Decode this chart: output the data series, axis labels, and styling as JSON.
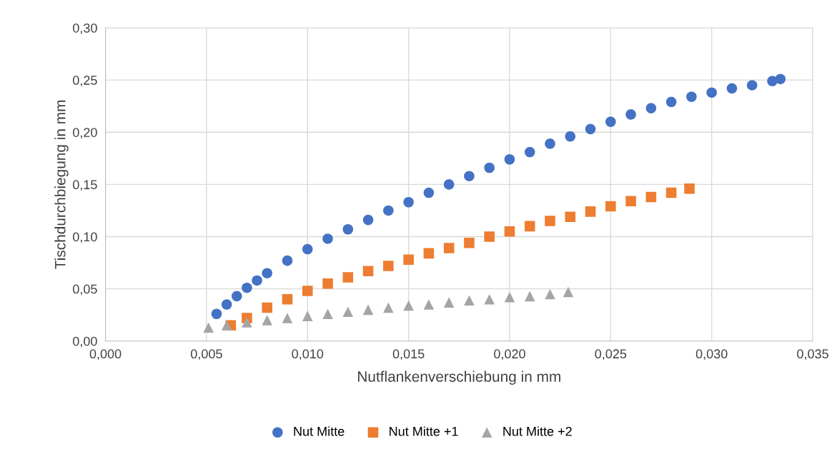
{
  "chart_data": {
    "type": "scatter",
    "xlabel": "Nutflankenverschiebung in mm",
    "ylabel": "Tischdurchbiegung in mm",
    "xlim": [
      0,
      0.035
    ],
    "ylim": [
      0,
      0.3
    ],
    "xticks": [
      {
        "value": 0,
        "label": "0,000"
      },
      {
        "value": 0.005,
        "label": "0,005"
      },
      {
        "value": 0.01,
        "label": "0,010"
      },
      {
        "value": 0.015,
        "label": "0,015"
      },
      {
        "value": 0.02,
        "label": "0,020"
      },
      {
        "value": 0.025,
        "label": "0,025"
      },
      {
        "value": 0.03,
        "label": "0,030"
      },
      {
        "value": 0.035,
        "label": "0,035"
      }
    ],
    "yticks": [
      {
        "value": 0,
        "label": "0,00"
      },
      {
        "value": 0.05,
        "label": "0,05"
      },
      {
        "value": 0.1,
        "label": "0,10"
      },
      {
        "value": 0.15,
        "label": "0,15"
      },
      {
        "value": 0.2,
        "label": "0,20"
      },
      {
        "value": 0.25,
        "label": "0,25"
      },
      {
        "value": 0.3,
        "label": "0,30"
      }
    ],
    "grid": true,
    "legend": "bottom",
    "series": [
      {
        "name": "Nut Mitte",
        "color": "#4472c4",
        "marker": "circle",
        "x": [
          0.0055,
          0.006,
          0.0065,
          0.007,
          0.0075,
          0.008,
          0.009,
          0.01,
          0.011,
          0.012,
          0.013,
          0.014,
          0.015,
          0.016,
          0.017,
          0.018,
          0.019,
          0.02,
          0.021,
          0.022,
          0.023,
          0.024,
          0.025,
          0.026,
          0.027,
          0.028,
          0.029,
          0.03,
          0.031,
          0.032,
          0.033,
          0.0334
        ],
        "values": [
          0.026,
          0.035,
          0.043,
          0.051,
          0.058,
          0.065,
          0.077,
          0.088,
          0.098,
          0.107,
          0.116,
          0.125,
          0.133,
          0.142,
          0.15,
          0.158,
          0.166,
          0.174,
          0.181,
          0.189,
          0.196,
          0.203,
          0.21,
          0.217,
          0.223,
          0.229,
          0.234,
          0.238,
          0.242,
          0.245,
          0.249,
          0.251
        ]
      },
      {
        "name": "Nut Mitte +1",
        "color": "#ed7d31",
        "marker": "square",
        "x": [
          0.0062,
          0.007,
          0.008,
          0.009,
          0.01,
          0.011,
          0.012,
          0.013,
          0.014,
          0.015,
          0.016,
          0.017,
          0.018,
          0.019,
          0.02,
          0.021,
          0.022,
          0.023,
          0.024,
          0.025,
          0.026,
          0.027,
          0.028,
          0.0289
        ],
        "values": [
          0.015,
          0.022,
          0.032,
          0.04,
          0.048,
          0.055,
          0.061,
          0.067,
          0.072,
          0.078,
          0.084,
          0.089,
          0.094,
          0.1,
          0.105,
          0.11,
          0.115,
          0.119,
          0.124,
          0.129,
          0.134,
          0.138,
          0.142,
          0.146
        ]
      },
      {
        "name": "Nut Mitte +2",
        "color": "#a5a5a5",
        "marker": "triangle",
        "x": [
          0.0051,
          0.006,
          0.007,
          0.008,
          0.009,
          0.01,
          0.011,
          0.012,
          0.013,
          0.014,
          0.015,
          0.016,
          0.017,
          0.018,
          0.019,
          0.02,
          0.021,
          0.022,
          0.0229
        ],
        "values": [
          0.013,
          0.015,
          0.018,
          0.02,
          0.022,
          0.024,
          0.026,
          0.028,
          0.03,
          0.032,
          0.034,
          0.035,
          0.037,
          0.039,
          0.04,
          0.042,
          0.043,
          0.045,
          0.047
        ]
      }
    ]
  }
}
